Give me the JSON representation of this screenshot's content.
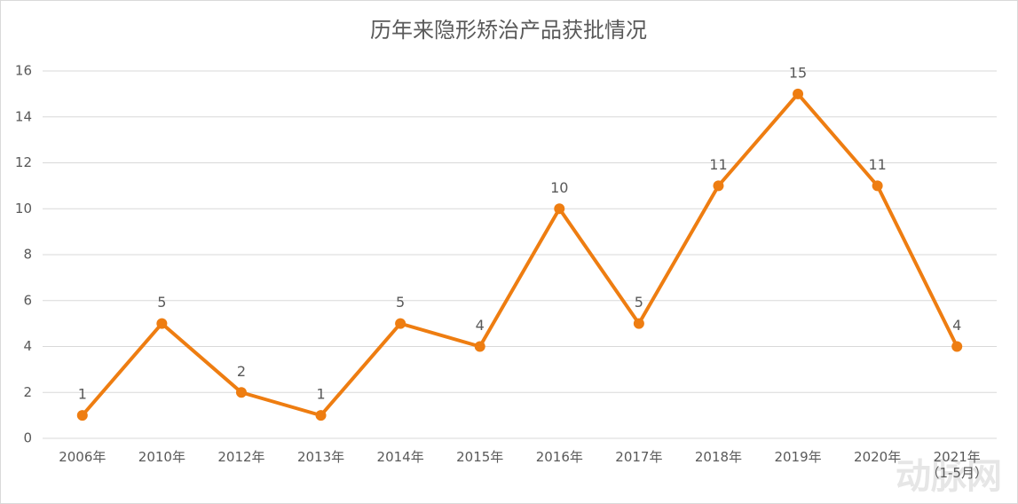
{
  "chart_data": {
    "type": "line",
    "title": "历年来隐形矫治产品获批情况",
    "categories": [
      "2006年",
      "2010年",
      "2012年",
      "2013年",
      "2014年",
      "2015年",
      "2016年",
      "2017年",
      "2018年",
      "2019年",
      "2020年",
      "2021年\n（1-5月）"
    ],
    "values": [
      1,
      5,
      2,
      1,
      5,
      4,
      10,
      5,
      11,
      15,
      11,
      4
    ],
    "color": "#ee7d11",
    "ylim": [
      0,
      16
    ],
    "yticks": [
      0,
      2,
      4,
      6,
      8,
      10,
      12,
      14,
      16
    ],
    "grid": true,
    "watermark": "动脉网"
  }
}
